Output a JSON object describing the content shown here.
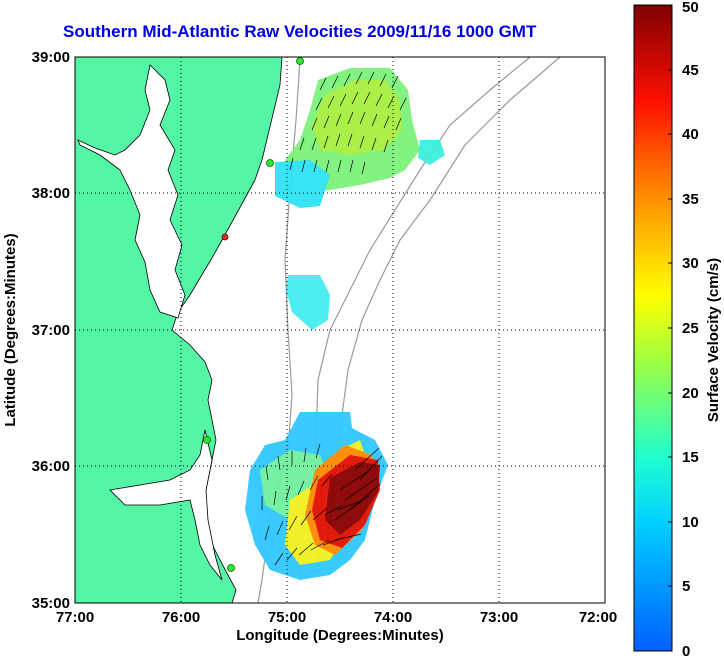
{
  "title": "Southern Mid-Atlantic Raw Velocities 2009/11/16 1000 GMT",
  "xlabel": "Longitude (Degrees:Minutes)",
  "ylabel": "Latitude (Degrees:Minutes)",
  "colorbar_label": "Surface Velocity (cm/s)",
  "x_ticks": [
    "77:00",
    "76:00",
    "75:00",
    "74:00",
    "73:00",
    "72:00"
  ],
  "y_ticks": [
    "39:00",
    "38:00",
    "37:00",
    "36:00",
    "35:00"
  ],
  "colorbar_ticks": [
    "0",
    "5",
    "10",
    "15",
    "20",
    "25",
    "30",
    "35",
    "40",
    "45",
    "50"
  ],
  "colors": {
    "land": "#55f5a6",
    "title": "#0000e6",
    "grid": "#000000"
  },
  "chart_data": {
    "type": "heatmap",
    "xlim": [
      -77,
      -72
    ],
    "ylim": [
      35,
      39
    ],
    "colorbar_range": [
      0,
      50
    ],
    "grid": true,
    "colorbar_placement": "right"
  }
}
